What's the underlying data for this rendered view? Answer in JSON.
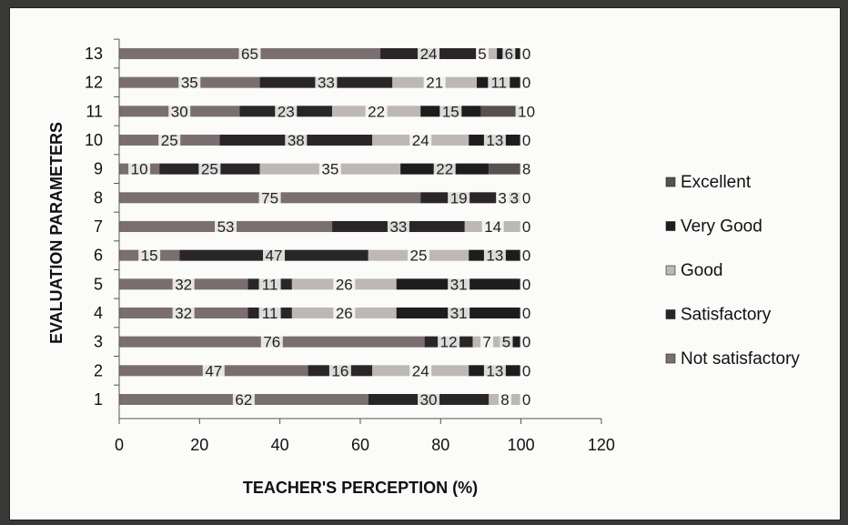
{
  "chart_data": {
    "type": "bar",
    "orientation": "horizontal",
    "stacked": true,
    "title": "",
    "xlabel": "TEACHER'S PERCEPTION (%)",
    "ylabel": "EVALUATION PARAMETERS",
    "xlim": [
      0,
      120
    ],
    "xticks": [
      0,
      20,
      40,
      60,
      80,
      100,
      120
    ],
    "grid": false,
    "legend_position": "right",
    "categories": [
      "1",
      "2",
      "3",
      "4",
      "5",
      "6",
      "7",
      "8",
      "9",
      "10",
      "11",
      "12",
      "13"
    ],
    "series": [
      {
        "name": "Not satisfactory",
        "color": "#7a6e70",
        "values": [
          62,
          47,
          76,
          32,
          32,
          15,
          53,
          75,
          10,
          25,
          30,
          35,
          65
        ]
      },
      {
        "name": "Satisfactory",
        "color": "#2a2628",
        "values": [
          30,
          16,
          12,
          11,
          11,
          47,
          33,
          19,
          25,
          38,
          23,
          33,
          24
        ]
      },
      {
        "name": "Good",
        "color": "#bdb8b6",
        "values": [
          8,
          24,
          7,
          26,
          26,
          25,
          14,
          3,
          35,
          24,
          22,
          21,
          5
        ]
      },
      {
        "name": "Very Good",
        "color": "#1e1c1d",
        "values": [
          0,
          13,
          5,
          31,
          31,
          13,
          0,
          3,
          22,
          13,
          15,
          11,
          6
        ]
      },
      {
        "name": "Excellent",
        "color": "#56504f",
        "values": [
          0,
          0,
          0,
          0,
          0,
          0,
          0,
          0,
          8,
          0,
          10,
          0,
          0
        ]
      }
    ],
    "data_labels": [
      [
        "62",
        "30",
        "8",
        "0"
      ],
      [
        "47",
        "16",
        "24",
        "13",
        "0"
      ],
      [
        "76",
        "12",
        "7",
        "5",
        "0"
      ],
      [
        "32",
        "11",
        "26",
        "31",
        "0"
      ],
      [
        "32",
        "11",
        "26",
        "31",
        "0"
      ],
      [
        "15",
        "47",
        "25",
        "13",
        "0"
      ],
      [
        "53",
        "33",
        "14",
        "0"
      ],
      [
        "75",
        "19",
        "3",
        "3",
        "0"
      ],
      [
        "10",
        "25",
        "35",
        "22",
        "8"
      ],
      [
        "25",
        "38",
        "24",
        "13",
        "0"
      ],
      [
        "30",
        "23",
        "22",
        "15",
        "10"
      ],
      [
        "35",
        "33",
        "21",
        "11",
        "0"
      ],
      [
        "65",
        "24",
        "5",
        "6",
        "0"
      ]
    ]
  }
}
